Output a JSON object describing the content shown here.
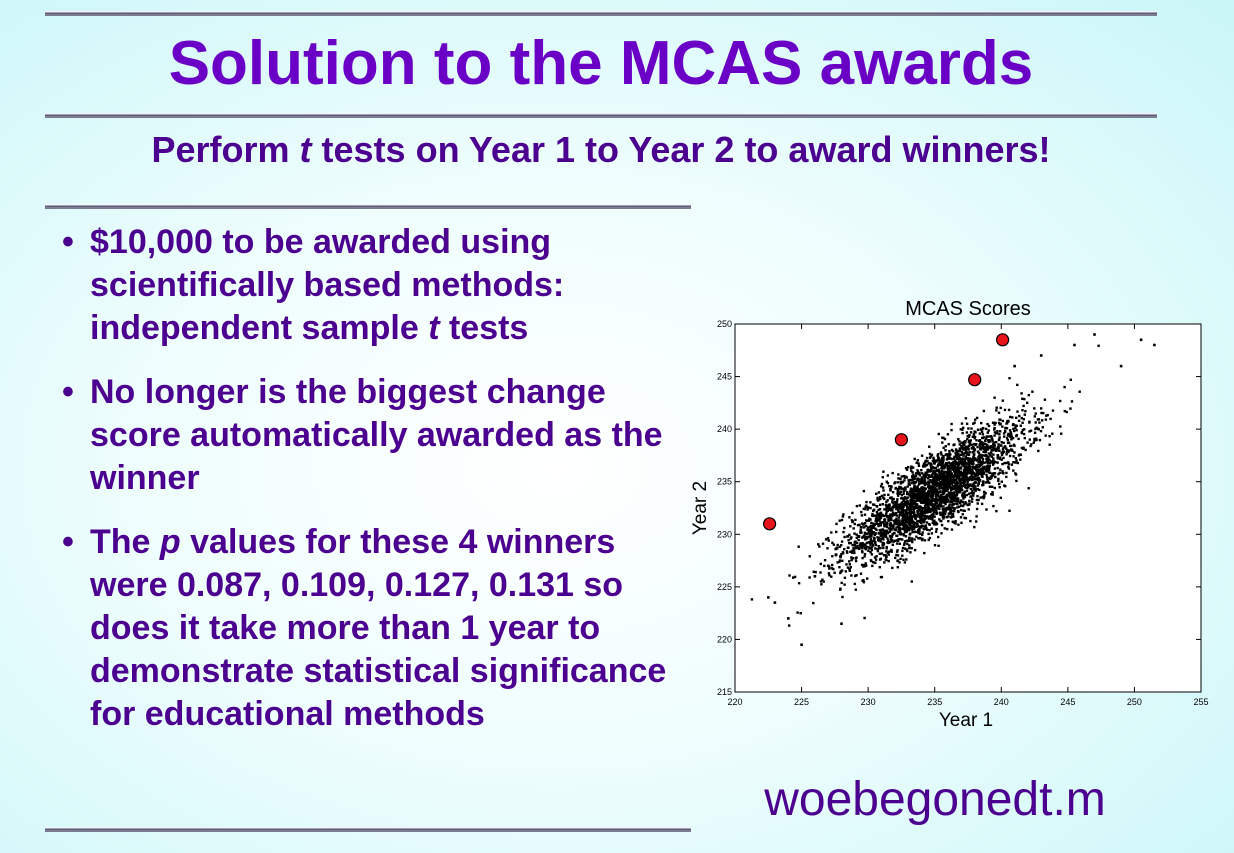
{
  "slide": {
    "title": "Solution to the MCAS awards",
    "subtitle": {
      "pre": "Perform ",
      "em": "t",
      "post": " tests on Year 1 to Year 2 to award winners!"
    },
    "bullet_glyph": "•",
    "bullets": [
      {
        "pre": "$10,000 to be awarded using scientifically based methods: independent sample ",
        "em": "t",
        "post": " tests"
      },
      {
        "pre": "No longer is the biggest change score automatically awarded as the winner",
        "em": "",
        "post": ""
      },
      {
        "pre": "The ",
        "em": "p",
        "post": " values for these 4 winners were 0.087, 0.109, 0.127, 0.131 so does it take more than 1 year to demonstrate statistical significance for educational methods"
      }
    ],
    "footer": "woebegonedt.m",
    "colors": {
      "title": "#6a00c6",
      "text": "#4b0090",
      "points": "#000000",
      "winners": "#e8141c"
    }
  },
  "chart_data": {
    "type": "scatter",
    "title": "MCAS Scores",
    "xlabel": "Year 1",
    "ylabel": "Year 2",
    "xlim": [
      220,
      255
    ],
    "ylim": [
      215,
      250
    ],
    "xticks": [
      220,
      225,
      230,
      235,
      240,
      245,
      250,
      255
    ],
    "yticks": [
      215,
      220,
      225,
      230,
      235,
      240,
      245,
      250
    ],
    "grid": false,
    "series": [
      {
        "marker": "small-dot",
        "cloud": {
          "count": 3000,
          "mean": [
            235,
            234
          ],
          "sd": [
            3.4,
            3.3
          ],
          "correlation": 0.83
        },
        "points": [
          [
            222.5,
            224
          ],
          [
            223,
            223.5
          ],
          [
            224,
            222
          ],
          [
            225,
            219.5
          ],
          [
            226,
            226
          ],
          [
            227,
            227
          ],
          [
            228,
            221.5
          ],
          [
            229,
            229
          ],
          [
            241,
            246
          ],
          [
            243,
            247
          ],
          [
            245.5,
            248
          ],
          [
            247,
            249
          ],
          [
            249,
            246
          ],
          [
            250.5,
            248.5
          ],
          [
            251.5,
            248
          ]
        ]
      },
      {
        "name": "winners",
        "marker": "large-circle",
        "points": [
          [
            222.6,
            231
          ],
          [
            232.5,
            239
          ],
          [
            238,
            244.7
          ],
          [
            240.1,
            248.5
          ]
        ]
      }
    ]
  }
}
